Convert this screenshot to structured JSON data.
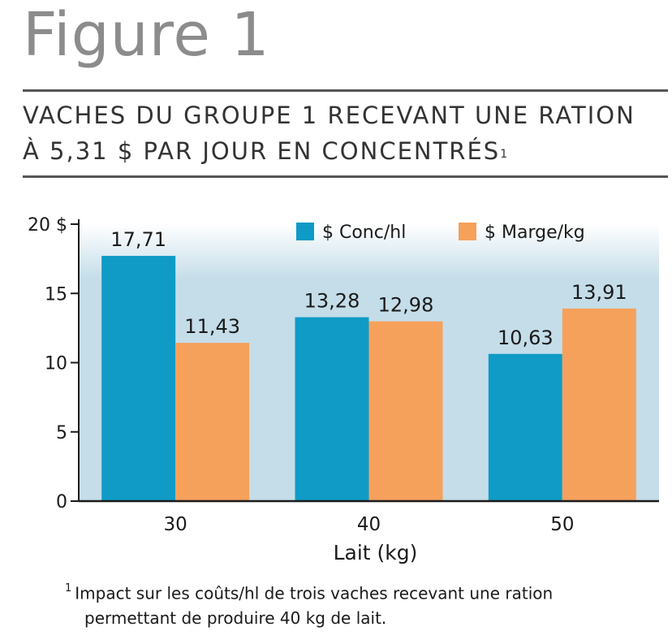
{
  "figure_label": "Figure 1",
  "title_line1": "VACHES DU GROUPE 1 RECEVANT UNE RATION",
  "title_line2": "À 5,31 $ PAR JOUR EN CONCENTRÉS",
  "title_footnote_mark": "1",
  "footnote": {
    "mark": "1",
    "line1": "Impact sur les coûts/hl de trois vaches recevant une ration",
    "line2": "permettant de produire 40 kg de lait."
  },
  "chart_data": {
    "type": "bar",
    "categories": [
      "30",
      "40",
      "50"
    ],
    "series": [
      {
        "name": "$ Conc/hl",
        "color": "#0f9bc6",
        "values": [
          17.71,
          13.28,
          10.63
        ],
        "labels": [
          "17,71",
          "13,28",
          "10,63"
        ]
      },
      {
        "name": "$ Marge/kg",
        "color": "#f5a15c",
        "values": [
          11.43,
          12.98,
          13.91
        ],
        "labels": [
          "11,43",
          "12,98",
          "13,91"
        ]
      }
    ],
    "xlabel": "Lait (kg)",
    "ylabel": "",
    "ylim": [
      0,
      20
    ],
    "yticks": [
      {
        "value": 0,
        "label": "0"
      },
      {
        "value": 5,
        "label": "5"
      },
      {
        "value": 10,
        "label": "10"
      },
      {
        "value": 15,
        "label": "15"
      },
      {
        "value": 20,
        "label": "20 $"
      }
    ],
    "legend_position": "top-right",
    "background_gradient": [
      "#ffffff",
      "#c4dde9"
    ]
  }
}
